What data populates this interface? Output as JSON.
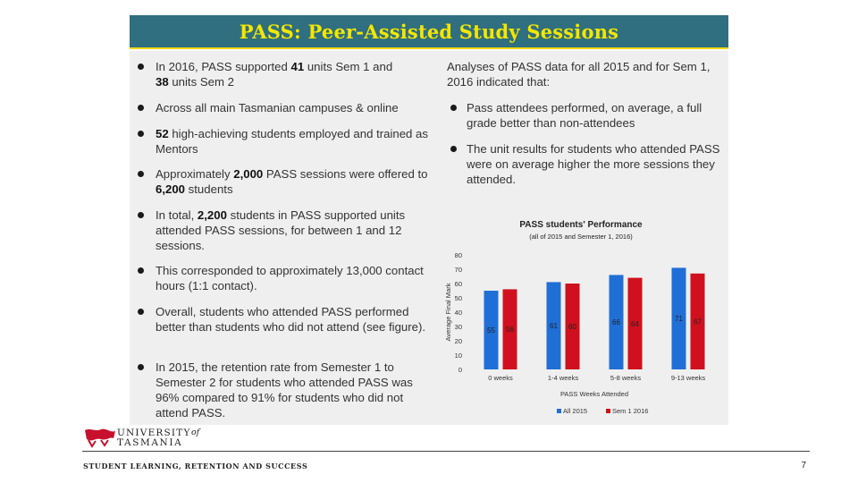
{
  "title": "PASS: Peer-Assisted Study Sessions",
  "left_bullets": [
    {
      "pre": "In 2016, PASS supported ",
      "b1": "41",
      "mid": " units Sem 1 and ",
      "b2": "38",
      "post": " units Sem 2"
    },
    {
      "pre": "Across all main Tasmanian campuses & online",
      "b1": "",
      "mid": "",
      "b2": "",
      "post": ""
    },
    {
      "pre": "",
      "b1": "52",
      "mid": " high-achieving students employed and trained as Mentors",
      "b2": "",
      "post": ""
    },
    {
      "pre": "Approximately ",
      "b1": "2,000",
      "mid": "  PASS sessions were offered to ",
      "b2": "6,200",
      "post": " students"
    },
    {
      "pre": "In total, ",
      "b1": "2,200",
      "mid": " students in PASS supported units attended PASS sessions, for between 1 and 12 sessions.",
      "b2": "",
      "post": ""
    },
    {
      "pre": "This corresponded to approximately 13,000 contact hours (1:1 contact).",
      "b1": "",
      "mid": "",
      "b2": "",
      "post": ""
    },
    {
      "pre": "Overall, students who attended PASS performed better than students who did not attend (see figure).",
      "b1": "",
      "mid": "",
      "b2": "",
      "post": ""
    },
    {
      "pre": "In 2015, the retention rate from Semester 1 to Semester 2 for students who attended PASS was 96% compared to 91% for students who did not attend PASS.",
      "b1": "",
      "mid": "",
      "b2": "",
      "post": ""
    }
  ],
  "right": {
    "intro": "Analyses of PASS data for all 2015 and for Sem 1, 2016 indicated that:",
    "bullets": [
      "Pass attendees performed, on average, a full grade better than non-attendees",
      "The unit results for students who attended PASS were on average higher the more sessions they attended."
    ]
  },
  "chart_data": {
    "type": "bar",
    "title": "PASS students' Performance",
    "subtitle": "(all of 2015 and Semester 1, 2016)",
    "xlabel": "PASS Weeks Attended",
    "ylabel": "Average Final Mark",
    "categories": [
      "0 weeks",
      "1-4 weeks",
      "5-8 weeks",
      "9-13 weeks"
    ],
    "series": [
      {
        "name": "All 2015",
        "values": [
          55,
          61,
          66,
          71
        ],
        "color": "#1f6fd6"
      },
      {
        "name": "Sem 1 2016",
        "values": [
          56,
          60,
          64,
          67
        ],
        "color": "#d0101e"
      }
    ],
    "ylim": [
      0,
      80
    ],
    "yticks": [
      0,
      10,
      20,
      30,
      40,
      50,
      60,
      70,
      80
    ],
    "legend": "bottom"
  },
  "footer": {
    "university_line1": "UNIVERSITY",
    "university_of": "of",
    "university_line2": "TASMANIA",
    "text": "STUDENT LEARNING, RETENTION AND SUCCESS",
    "page": "7"
  }
}
